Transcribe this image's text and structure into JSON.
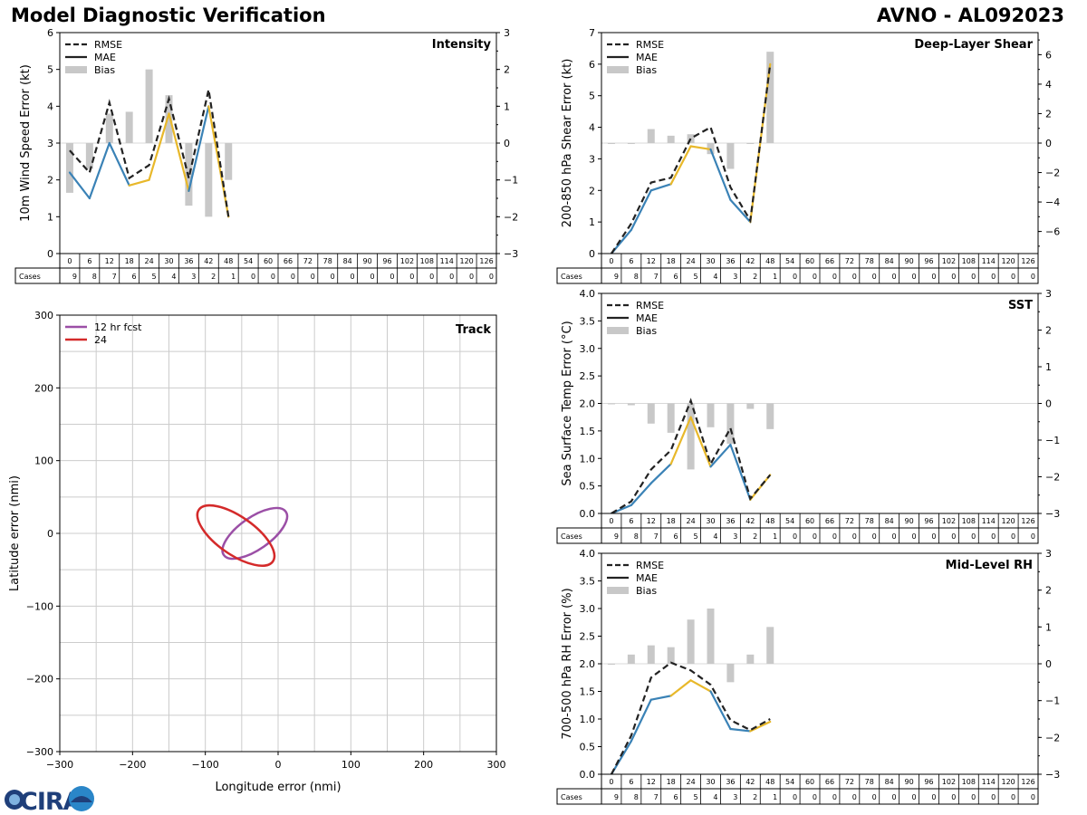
{
  "header": {
    "title_left": "Model Diagnostic Verification",
    "title_right": "AVNO - AL092023"
  },
  "logo": {
    "text": "CIRA",
    "colors": [
      "#1f3f7a",
      "#2a86c8"
    ]
  },
  "colors": {
    "rmse": "#222222",
    "mae_blue": "#3a82b6",
    "mae_yellow": "#e8b82a",
    "bias": "#c8c8c8",
    "grid": "#cccccc",
    "track_12": "#9b4fa6",
    "track_24": "#d42a2a"
  },
  "legend_labels": [
    "RMSE",
    "MAE",
    "Bias"
  ],
  "cases_label": "Cases",
  "chart_data": [
    {
      "type": "line",
      "name": "intensity",
      "title": "Intensity",
      "ylabel": "10m Wind Speed Error (kt)",
      "ylim": [
        0,
        6
      ],
      "yticks": [
        0,
        1,
        2,
        3,
        4,
        5,
        6
      ],
      "y2lim": [
        -3,
        3
      ],
      "y2ticks": [
        -3,
        -2,
        -1,
        0,
        1,
        2,
        3
      ],
      "lead_times": [
        0,
        6,
        12,
        18,
        24,
        30,
        36,
        42,
        48,
        54,
        60,
        66,
        72,
        78,
        84,
        90,
        96,
        102,
        108,
        114,
        120,
        126
      ],
      "cases": [
        9,
        8,
        7,
        6,
        5,
        4,
        3,
        2,
        1,
        0,
        0,
        0,
        0,
        0,
        0,
        0,
        0,
        0,
        0,
        0,
        0,
        0
      ],
      "series": [
        {
          "name": "RMSE",
          "x": [
            0,
            6,
            12,
            18,
            24,
            30,
            36,
            42,
            48
          ],
          "values": [
            2.8,
            2.2,
            4.1,
            2.05,
            2.4,
            4.2,
            2.05,
            4.45,
            1.0
          ]
        },
        {
          "name": "MAE",
          "x": [
            0,
            6,
            12,
            18,
            24,
            30,
            36,
            42,
            48
          ],
          "values": [
            2.2,
            1.5,
            3.0,
            1.85,
            2.0,
            3.8,
            1.7,
            4.0,
            1.0
          ],
          "mae_colors": [
            "blue",
            "blue",
            "blue",
            "yellow",
            "yellow",
            "yellow",
            "blue",
            "yellow"
          ]
        },
        {
          "name": "Bias",
          "x": [
            0,
            6,
            12,
            18,
            24,
            30,
            36,
            42,
            48
          ],
          "values": [
            -1.35,
            -0.7,
            0.8,
            0.85,
            2.0,
            1.3,
            -1.7,
            -2.0,
            -1.0
          ]
        }
      ],
      "legend_position": "top-left",
      "grid": false
    },
    {
      "type": "line",
      "name": "deep-layer-shear",
      "title": "Deep-Layer Shear",
      "ylabel": "200-850 hPa Shear Error (kt)",
      "ylim": [
        0,
        7
      ],
      "yticks": [
        0,
        1,
        2,
        3,
        4,
        5,
        6,
        7
      ],
      "y2lim": [
        -7.5,
        7.5
      ],
      "y2ticks": [
        -6,
        -4,
        -2,
        0,
        2,
        4,
        6
      ],
      "lead_times": [
        0,
        6,
        12,
        18,
        24,
        30,
        36,
        42,
        48,
        54,
        60,
        66,
        72,
        78,
        84,
        90,
        96,
        102,
        108,
        114,
        120,
        126
      ],
      "cases": [
        9,
        8,
        7,
        6,
        5,
        4,
        3,
        2,
        1,
        0,
        0,
        0,
        0,
        0,
        0,
        0,
        0,
        0,
        0,
        0,
        0,
        0
      ],
      "series": [
        {
          "name": "RMSE",
          "x": [
            0,
            6,
            12,
            18,
            24,
            30,
            36,
            42,
            48
          ],
          "values": [
            0.0,
            0.95,
            2.25,
            2.4,
            3.65,
            4.0,
            2.1,
            1.05,
            6.0
          ]
        },
        {
          "name": "MAE",
          "x": [
            0,
            6,
            12,
            18,
            24,
            30,
            36,
            42,
            48
          ],
          "values": [
            0.0,
            0.75,
            2.0,
            2.2,
            3.4,
            3.3,
            1.7,
            1.0,
            6.0
          ],
          "mae_colors": [
            "blue",
            "blue",
            "blue",
            "yellow",
            "yellow",
            "blue",
            "blue",
            "yellow"
          ]
        },
        {
          "name": "Bias",
          "x": [
            0,
            6,
            12,
            18,
            24,
            30,
            36,
            42,
            48
          ],
          "values": [
            -0.05,
            0.0,
            0.95,
            0.5,
            0.6,
            -0.75,
            -1.75,
            0.0,
            6.2
          ]
        }
      ],
      "legend_position": "top-left",
      "grid": false
    },
    {
      "type": "line",
      "name": "sst",
      "title": "SST",
      "ylabel": "Sea Surface Temp Error (°C)",
      "ylim": [
        0,
        4
      ],
      "yticks": [
        0.0,
        0.5,
        1.0,
        1.5,
        2.0,
        2.5,
        3.0,
        3.5,
        4.0
      ],
      "y2lim": [
        -3,
        3
      ],
      "y2ticks": [
        -3,
        -2,
        -1,
        0,
        1,
        2,
        3
      ],
      "lead_times": [
        0,
        6,
        12,
        18,
        24,
        30,
        36,
        42,
        48,
        54,
        60,
        66,
        72,
        78,
        84,
        90,
        96,
        102,
        108,
        114,
        120,
        126
      ],
      "cases": [
        9,
        8,
        7,
        6,
        5,
        4,
        3,
        2,
        1,
        0,
        0,
        0,
        0,
        0,
        0,
        0,
        0,
        0,
        0,
        0,
        0,
        0
      ],
      "series": [
        {
          "name": "RMSE",
          "x": [
            0,
            6,
            12,
            18,
            24,
            30,
            36,
            42,
            48
          ],
          "values": [
            0.0,
            0.22,
            0.8,
            1.15,
            2.05,
            0.9,
            1.55,
            0.27,
            0.7
          ]
        },
        {
          "name": "MAE",
          "x": [
            0,
            6,
            12,
            18,
            24,
            30,
            36,
            42,
            48
          ],
          "values": [
            0.0,
            0.15,
            0.55,
            0.9,
            1.75,
            0.85,
            1.25,
            0.25,
            0.7
          ],
          "mae_colors": [
            "blue",
            "blue",
            "blue",
            "yellow",
            "yellow",
            "blue",
            "blue",
            "yellow"
          ]
        },
        {
          "name": "Bias",
          "x": [
            0,
            6,
            12,
            18,
            24,
            30,
            36,
            42,
            48
          ],
          "values": [
            0.0,
            -0.05,
            -0.55,
            -0.8,
            -1.8,
            -0.65,
            -1.1,
            -0.15,
            -0.7
          ]
        }
      ],
      "legend_position": "top-left",
      "grid": false
    },
    {
      "type": "line",
      "name": "mid-level-rh",
      "title": "Mid-Level RH",
      "ylabel": "700-500 hPa RH Error (%)",
      "ylim": [
        0,
        4
      ],
      "yticks": [
        0.0,
        0.5,
        1.0,
        1.5,
        2.0,
        2.5,
        3.0,
        3.5,
        4.0
      ],
      "y2lim": [
        -3,
        3
      ],
      "y2ticks": [
        -3,
        -2,
        -1,
        0,
        1,
        2,
        3
      ],
      "lead_times": [
        0,
        6,
        12,
        18,
        24,
        30,
        36,
        42,
        48,
        54,
        60,
        66,
        72,
        78,
        84,
        90,
        96,
        102,
        108,
        114,
        120,
        126
      ],
      "cases": [
        9,
        8,
        7,
        6,
        5,
        4,
        3,
        2,
        1,
        0,
        0,
        0,
        0,
        0,
        0,
        0,
        0,
        0,
        0,
        0,
        0,
        0
      ],
      "series": [
        {
          "name": "RMSE",
          "x": [
            0,
            6,
            12,
            18,
            24,
            30,
            36,
            42,
            48
          ],
          "values": [
            0.0,
            0.7,
            1.75,
            2.02,
            1.88,
            1.62,
            0.98,
            0.8,
            1.0
          ]
        },
        {
          "name": "MAE",
          "x": [
            0,
            6,
            12,
            18,
            24,
            30,
            36,
            42,
            48
          ],
          "values": [
            0.0,
            0.6,
            1.35,
            1.42,
            1.7,
            1.5,
            0.82,
            0.78,
            0.95
          ],
          "mae_colors": [
            "blue",
            "blue",
            "blue",
            "yellow",
            "yellow",
            "blue",
            "blue",
            "yellow"
          ]
        },
        {
          "name": "Bias",
          "x": [
            0,
            6,
            12,
            18,
            24,
            30,
            36,
            42,
            48
          ],
          "values": [
            0.0,
            0.25,
            0.5,
            0.45,
            1.2,
            1.5,
            -0.5,
            0.25,
            1.0
          ]
        }
      ],
      "legend_position": "top-left",
      "grid": false
    },
    {
      "type": "scatter",
      "name": "track",
      "title": "Track",
      "xlabel": "Longitude error (nmi)",
      "ylabel": "Latitude error (nmi)",
      "xlim": [
        -300,
        300
      ],
      "ylim": [
        -300,
        300
      ],
      "xticks": [
        -300,
        -200,
        -100,
        0,
        100,
        200,
        300
      ],
      "yticks": [
        -300,
        -200,
        -100,
        0,
        100,
        200,
        300
      ],
      "grid": true,
      "legend_position": "top-left",
      "series": [
        {
          "name": "12 hr fcst",
          "ellipse": {
            "cx": -32,
            "cy": 0,
            "rx": 52,
            "ry": 22,
            "angle_deg": 35
          }
        },
        {
          "name": "24",
          "ellipse": {
            "cx": -58,
            "cy": -3,
            "rx": 62,
            "ry": 26,
            "angle_deg": -35
          }
        }
      ]
    }
  ]
}
